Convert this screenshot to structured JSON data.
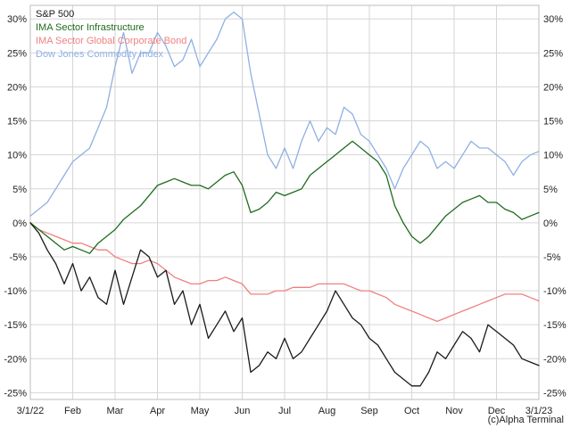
{
  "chart_data": {
    "type": "line",
    "title": "",
    "xlabel": "",
    "ylabel": "",
    "grid": true,
    "legend_position": "top-left",
    "credit": "(c)Alpha Terminal",
    "x_ticks": [
      {
        "label": "3/1/22",
        "pos": 0
      },
      {
        "label": "Feb",
        "pos": 1
      },
      {
        "label": "Mar",
        "pos": 2
      },
      {
        "label": "Apr",
        "pos": 3
      },
      {
        "label": "May",
        "pos": 4
      },
      {
        "label": "Jun",
        "pos": 5
      },
      {
        "label": "Jul",
        "pos": 6
      },
      {
        "label": "Aug",
        "pos": 7
      },
      {
        "label": "Sep",
        "pos": 8
      },
      {
        "label": "Oct",
        "pos": 9
      },
      {
        "label": "Nov",
        "pos": 10
      },
      {
        "label": "Dec",
        "pos": 11
      },
      {
        "label": "3/1/23",
        "pos": 12
      }
    ],
    "ylim": [
      -26,
      32
    ],
    "y_ticks": [
      30,
      25,
      20,
      15,
      10,
      5,
      0,
      -5,
      -10,
      -15,
      -20,
      -25
    ],
    "y_tick_suffix": "%",
    "series": [
      {
        "name": "S&P 500",
        "color": "#1a1a1a",
        "x": [
          0,
          0.2,
          0.4,
          0.6,
          0.8,
          1.0,
          1.2,
          1.4,
          1.6,
          1.8,
          2.0,
          2.2,
          2.4,
          2.6,
          2.8,
          3.0,
          3.2,
          3.4,
          3.6,
          3.8,
          4.0,
          4.2,
          4.4,
          4.6,
          4.8,
          5.0,
          5.2,
          5.4,
          5.6,
          5.8,
          6.0,
          6.2,
          6.4,
          6.6,
          6.8,
          7.0,
          7.2,
          7.4,
          7.6,
          7.8,
          8.0,
          8.2,
          8.4,
          8.6,
          8.8,
          9.0,
          9.2,
          9.4,
          9.6,
          9.8,
          10.0,
          10.2,
          10.4,
          10.6,
          10.8,
          11.0,
          11.2,
          11.4,
          11.6,
          11.8,
          12.0
        ],
        "values": [
          0,
          -1.5,
          -4,
          -6,
          -9,
          -6,
          -10,
          -8,
          -11,
          -12,
          -7,
          -12,
          -8,
          -4,
          -5,
          -8,
          -7,
          -12,
          -10,
          -15,
          -12,
          -17,
          -15,
          -13,
          -16,
          -14,
          -22,
          -21,
          -19,
          -20,
          -17,
          -20,
          -19,
          -17,
          -15,
          -13,
          -10,
          -12,
          -14,
          -15,
          -17,
          -18,
          -20,
          -22,
          -23,
          -24,
          -24,
          -22,
          -19,
          -20,
          -18,
          -16,
          -17,
          -19,
          -15,
          -16,
          -17,
          -18,
          -20,
          -20.5,
          -21
        ]
      },
      {
        "name": "IMA Sector Infrastructure",
        "color": "#1e6b1e",
        "x": [
          0,
          0.2,
          0.4,
          0.6,
          0.8,
          1.0,
          1.2,
          1.4,
          1.6,
          1.8,
          2.0,
          2.2,
          2.4,
          2.6,
          2.8,
          3.0,
          3.2,
          3.4,
          3.6,
          3.8,
          4.0,
          4.2,
          4.4,
          4.6,
          4.8,
          5.0,
          5.2,
          5.4,
          5.6,
          5.8,
          6.0,
          6.2,
          6.4,
          6.6,
          6.8,
          7.0,
          7.2,
          7.4,
          7.6,
          7.8,
          8.0,
          8.2,
          8.4,
          8.6,
          8.8,
          9.0,
          9.2,
          9.4,
          9.6,
          9.8,
          10.0,
          10.2,
          10.4,
          10.6,
          10.8,
          11.0,
          11.2,
          11.4,
          11.6,
          11.8,
          12.0
        ],
        "values": [
          0,
          -1,
          -2,
          -3,
          -4,
          -3.5,
          -4,
          -4.5,
          -3,
          -2,
          -1,
          0.5,
          1.5,
          2.5,
          4,
          5.5,
          6,
          6.5,
          6,
          5.5,
          5.5,
          5,
          6,
          7,
          7.5,
          5.5,
          1.5,
          2,
          3,
          4.5,
          4,
          4.5,
          5,
          7,
          8,
          9,
          10,
          11,
          12,
          11,
          10,
          9,
          7,
          2.5,
          0,
          -2,
          -3,
          -2,
          -0.5,
          1,
          2,
          3,
          3.5,
          4,
          3,
          3,
          2,
          1.5,
          0.5,
          1,
          1.5
        ]
      },
      {
        "name": "IMA Sector Global Corporate Bond",
        "color": "#f08080",
        "x": [
          0,
          0.2,
          0.4,
          0.6,
          0.8,
          1.0,
          1.2,
          1.4,
          1.6,
          1.8,
          2.0,
          2.2,
          2.4,
          2.6,
          2.8,
          3.0,
          3.2,
          3.4,
          3.6,
          3.8,
          4.0,
          4.2,
          4.4,
          4.6,
          4.8,
          5.0,
          5.2,
          5.4,
          5.6,
          5.8,
          6.0,
          6.2,
          6.4,
          6.6,
          6.8,
          7.0,
          7.2,
          7.4,
          7.6,
          7.8,
          8.0,
          8.2,
          8.4,
          8.6,
          8.8,
          9.0,
          9.2,
          9.4,
          9.6,
          9.8,
          10.0,
          10.2,
          10.4,
          10.6,
          10.8,
          11.0,
          11.2,
          11.4,
          11.6,
          11.8,
          12.0
        ],
        "values": [
          0,
          -1,
          -1.5,
          -2,
          -2.5,
          -3,
          -3,
          -3.5,
          -4,
          -4,
          -5,
          -5.5,
          -6,
          -6,
          -5.5,
          -6,
          -7,
          -8,
          -8.5,
          -9,
          -9,
          -8.5,
          -8.5,
          -8,
          -8.5,
          -9,
          -10.5,
          -10.5,
          -10.5,
          -10,
          -10,
          -9.5,
          -9.5,
          -9.5,
          -9,
          -9,
          -9,
          -9,
          -9.5,
          -10,
          -10,
          -10.5,
          -11,
          -12,
          -12.5,
          -13,
          -13.5,
          -14,
          -14.5,
          -14,
          -13.5,
          -13,
          -12.5,
          -12,
          -11.5,
          -11,
          -10.5,
          -10.5,
          -10.5,
          -11,
          -11.5
        ]
      },
      {
        "name": "Dow Jones Commodity Index",
        "color": "#8fb0e3",
        "x": [
          0,
          0.2,
          0.4,
          0.6,
          0.8,
          1.0,
          1.2,
          1.4,
          1.6,
          1.8,
          2.0,
          2.2,
          2.4,
          2.6,
          2.8,
          3.0,
          3.2,
          3.4,
          3.6,
          3.8,
          4.0,
          4.2,
          4.4,
          4.6,
          4.8,
          5.0,
          5.2,
          5.4,
          5.6,
          5.8,
          6.0,
          6.2,
          6.4,
          6.6,
          6.8,
          7.0,
          7.2,
          7.4,
          7.6,
          7.8,
          8.0,
          8.2,
          8.4,
          8.6,
          8.8,
          9.0,
          9.2,
          9.4,
          9.6,
          9.8,
          10.0,
          10.2,
          10.4,
          10.6,
          10.8,
          11.0,
          11.2,
          11.4,
          11.6,
          11.8,
          12.0
        ],
        "values": [
          1,
          2,
          3,
          5,
          7,
          9,
          10,
          11,
          14,
          17,
          23,
          28,
          22,
          25,
          25,
          28,
          26,
          23,
          24,
          27,
          23,
          25,
          27,
          30,
          31,
          30,
          22,
          16,
          10,
          8,
          11,
          8,
          12,
          15,
          12,
          14,
          13,
          17,
          16,
          13,
          12,
          10,
          8,
          5,
          8,
          10,
          12,
          11,
          8,
          9,
          8,
          10,
          12,
          11,
          11,
          10,
          9,
          7,
          9,
          10,
          10.5
        ]
      }
    ]
  }
}
